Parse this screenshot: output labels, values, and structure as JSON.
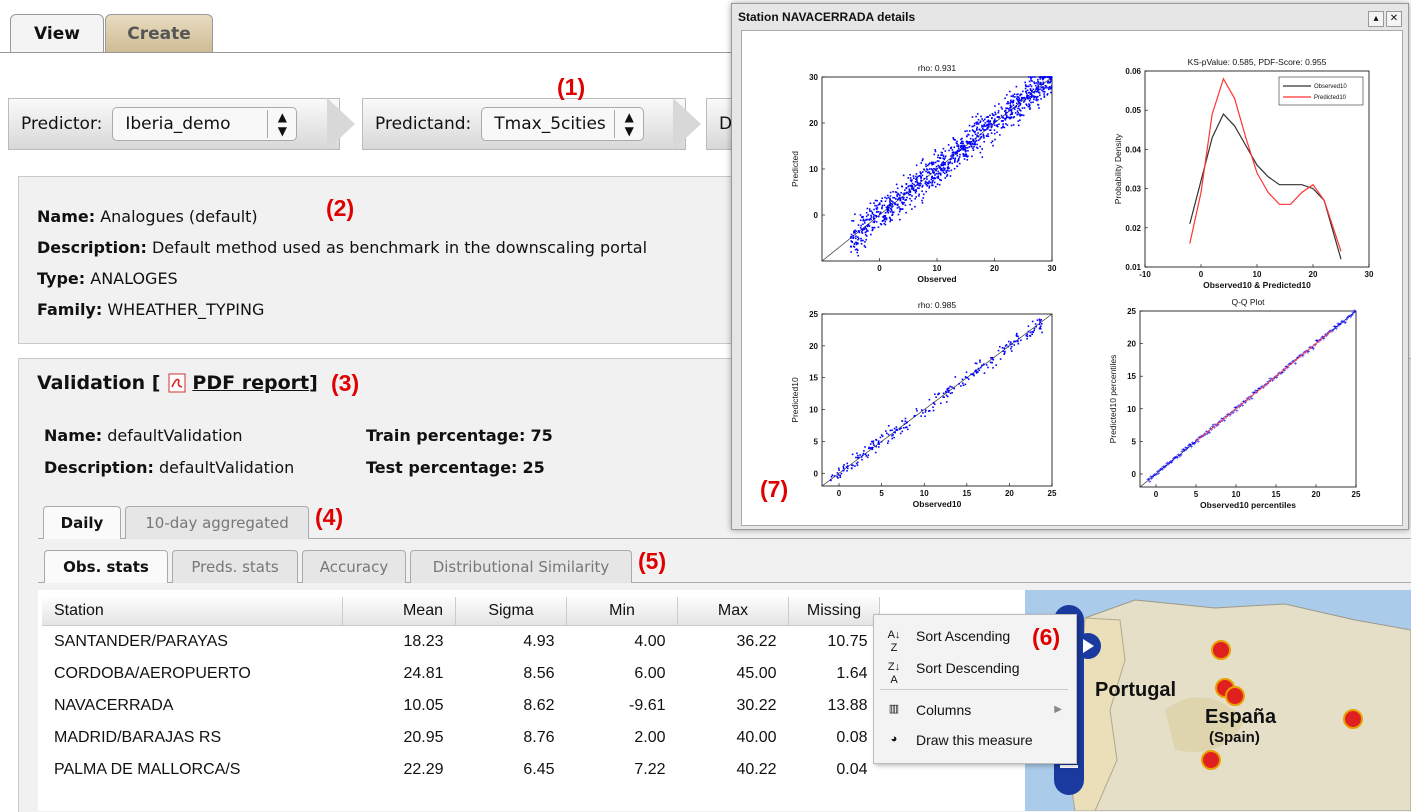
{
  "tabs": {
    "view": "View",
    "create": "Create"
  },
  "toolbar": {
    "predictor_label": "Predictor:",
    "predictor_value": "Iberia_demo",
    "predictand_label": "Predictand:",
    "predictand_value": "Tmax_5cities",
    "third_label": "D"
  },
  "annotations": {
    "a1": "(1)",
    "a2": "(2)",
    "a3": "(3)",
    "a4": "(4)",
    "a5": "(5)",
    "a6": "(6)",
    "a7": "(7)"
  },
  "method": {
    "name_label": "Name:",
    "name": "Analogues (default)",
    "desc_label": "Description:",
    "desc": "Default method used as benchmark in the downscaling portal",
    "type_label": "Type:",
    "type": "ANALOGES",
    "family_label": "Family:",
    "family": "WHEATHER_TYPING"
  },
  "validation": {
    "heading_prefix": "Validation [",
    "pdf_link": "PDF report",
    "heading_suffix": "]",
    "name_label": "Name:",
    "name": "defaultValidation",
    "desc_label": "Description:",
    "desc": "defaultValidation",
    "train_label": "Train percentage:",
    "train": "75",
    "test_label": "Test percentage:",
    "test": "25"
  },
  "period_tabs": [
    "Daily",
    "10-day aggregated"
  ],
  "stat_tabs": [
    "Obs. stats",
    "Preds. stats",
    "Accuracy",
    "Distributional Similarity"
  ],
  "table": {
    "columns": [
      "Station",
      "Mean",
      "Sigma",
      "Min",
      "Max",
      "Missing"
    ],
    "rows": [
      [
        "SANTANDER/PARAYAS",
        "18.23",
        "4.93",
        "4.00",
        "36.22",
        "10.75"
      ],
      [
        "CORDOBA/AEROPUERTO",
        "24.81",
        "8.56",
        "6.00",
        "45.00",
        "1.64"
      ],
      [
        "NAVACERRADA",
        "10.05",
        "8.62",
        "-9.61",
        "30.22",
        "13.88"
      ],
      [
        "MADRID/BARAJAS RS",
        "20.95",
        "8.76",
        "2.00",
        "40.00",
        "0.08"
      ],
      [
        "PALMA DE MALLORCA/S",
        "22.29",
        "6.45",
        "7.22",
        "40.22",
        "0.04"
      ]
    ]
  },
  "context_menu": {
    "sort_asc": "Sort Ascending",
    "sort_desc": "Sort Descending",
    "columns": "Columns",
    "draw": "Draw this measure"
  },
  "map": {
    "portugal": "Portugal",
    "espana": "España",
    "spain": "(Spain)"
  },
  "window": {
    "title": "Station NAVACERRADA details"
  },
  "chart_data": [
    {
      "type": "scatter",
      "title": "rho: 0.931",
      "xlabel": "Observed",
      "ylabel": "Predicted",
      "xlim": [
        -10,
        30
      ],
      "ylim": [
        -10,
        30
      ],
      "xticks": [
        "0",
        "10",
        "20",
        "30"
      ],
      "yticks": [
        "0",
        "10",
        "20",
        "30"
      ],
      "series_color": "#0000ff"
    },
    {
      "type": "line",
      "title": "KS-pValue: 0.585, PDF-Score: 0.955",
      "xlabel": "Observed10 & Predicted10",
      "ylabel": "Probability Density",
      "xlim": [
        -10,
        30
      ],
      "ylim": [
        0.01,
        0.06
      ],
      "xticks": [
        "-10",
        "0",
        "10",
        "20",
        "30"
      ],
      "yticks": [
        "0.01",
        "0.02",
        "0.03",
        "0.04",
        "0.05",
        "0.06"
      ],
      "series": [
        {
          "name": "Observed10",
          "color": "#333333",
          "x": [
            -2,
            0,
            2,
            4,
            6,
            8,
            10,
            12,
            14,
            16,
            18,
            20,
            22,
            25
          ],
          "values": [
            0.021,
            0.032,
            0.043,
            0.049,
            0.046,
            0.041,
            0.036,
            0.033,
            0.031,
            0.031,
            0.031,
            0.03,
            0.027,
            0.012
          ]
        },
        {
          "name": "Predicted10",
          "color": "#ff3333",
          "x": [
            -2,
            0,
            2,
            4,
            6,
            8,
            10,
            12,
            14,
            16,
            18,
            20,
            22,
            25
          ],
          "values": [
            0.016,
            0.029,
            0.049,
            0.058,
            0.053,
            0.043,
            0.034,
            0.029,
            0.026,
            0.026,
            0.029,
            0.031,
            0.027,
            0.014
          ]
        }
      ]
    },
    {
      "type": "scatter",
      "title": "rho: 0.985",
      "xlabel": "Observed10",
      "ylabel": "Predicted10",
      "xlim": [
        -2,
        25
      ],
      "ylim": [
        -2,
        25
      ],
      "xticks": [
        "0",
        "5",
        "10",
        "15",
        "20",
        "25"
      ],
      "yticks": [
        "0",
        "5",
        "10",
        "15",
        "20",
        "25"
      ],
      "series_color": "#0000ff"
    },
    {
      "type": "scatter",
      "title": "Q-Q Plot",
      "xlabel": "Observed10 percentiles",
      "ylabel": "Predicted10 percentiles",
      "xlim": [
        -2,
        25
      ],
      "ylim": [
        -2,
        25
      ],
      "xticks": [
        "0",
        "5",
        "10",
        "15",
        "20",
        "25"
      ],
      "yticks": [
        "0",
        "5",
        "10",
        "15",
        "20",
        "25"
      ],
      "series_color": "#0000ff"
    }
  ]
}
